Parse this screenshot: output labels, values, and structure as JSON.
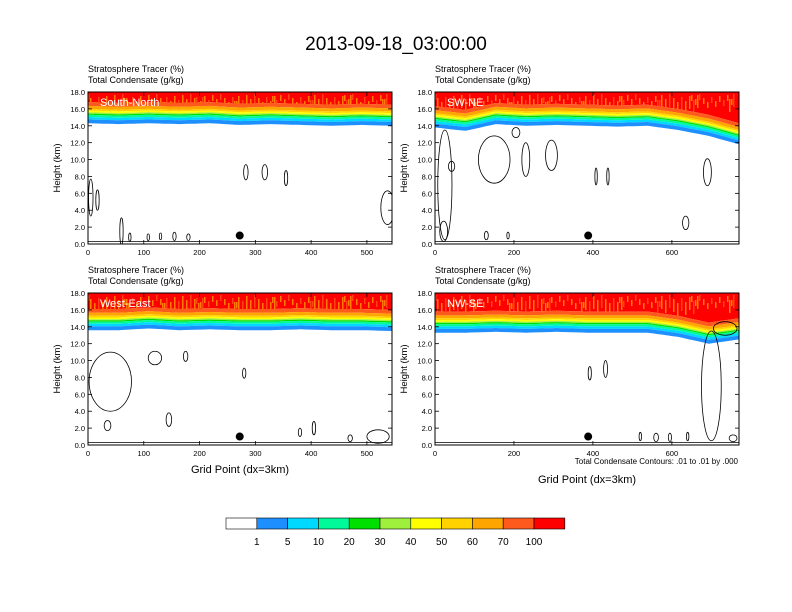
{
  "figure": {
    "title": "2013-09-18_03:00:00",
    "footnote": "Total Condensate Contours: .01 to .01 by .000"
  },
  "colors": {
    "bins": [
      "#ffffff",
      "#1e8fff",
      "#00d9ff",
      "#00fa9a",
      "#00e000",
      "#9ff03c",
      "#ffff00",
      "#ffd200",
      "#ffa500",
      "#ff5a1e",
      "#ff0000"
    ],
    "contour": "#000000"
  },
  "colorbar": {
    "labels": [
      "1",
      "5",
      "10",
      "20",
      "30",
      "40",
      "50",
      "60",
      "70",
      "100"
    ]
  },
  "chart_data": [
    {
      "type": "heatmap",
      "id": "south-north",
      "label": "South-North",
      "subtitle_line1": "Stratosphere Tracer   (%)",
      "subtitle_line2": "Total Condensate   (g/kg)",
      "ylabel": "Height (km)",
      "xlabel": "",
      "xlim": [
        0,
        545
      ],
      "ylim": [
        0,
        18
      ],
      "xticks": [
        0,
        100,
        200,
        300,
        400,
        500
      ],
      "yticks": [
        "0.0",
        "2.0",
        "4.0",
        "6.0",
        "8.0",
        "10.0",
        "12.0",
        "14.0",
        "16.0",
        "18.0"
      ],
      "tracer_bottom_km": [
        14.3,
        14.2,
        14.3,
        14.2,
        14.3,
        14.1,
        14.2,
        14.1,
        14.0,
        14.1,
        14.0
      ],
      "marker": {
        "x": 272,
        "y": 1.0
      },
      "contours": [
        {
          "x": 5,
          "y": 5.5,
          "rx": 4,
          "ry": 2.2
        },
        {
          "x": 17,
          "y": 5.2,
          "rx": 3,
          "ry": 1.2
        },
        {
          "x": 60,
          "y": 1.5,
          "rx": 3,
          "ry": 1.6
        },
        {
          "x": 75,
          "y": 0.8,
          "rx": 2,
          "ry": 0.5
        },
        {
          "x": 108,
          "y": 0.8,
          "rx": 2,
          "ry": 0.4
        },
        {
          "x": 130,
          "y": 0.9,
          "rx": 2,
          "ry": 0.4
        },
        {
          "x": 155,
          "y": 0.9,
          "rx": 3,
          "ry": 0.5
        },
        {
          "x": 180,
          "y": 0.8,
          "rx": 3,
          "ry": 0.4
        },
        {
          "x": 283,
          "y": 8.5,
          "rx": 4,
          "ry": 0.9
        },
        {
          "x": 317,
          "y": 8.5,
          "rx": 5,
          "ry": 0.9
        },
        {
          "x": 355,
          "y": 7.8,
          "rx": 3,
          "ry": 0.9
        },
        {
          "x": 537,
          "y": 4.3,
          "rx": 12,
          "ry": 2.0
        }
      ]
    },
    {
      "type": "heatmap",
      "id": "sw-ne",
      "label": "SW-NE",
      "subtitle_line1": "Stratosphere Tracer   (%)",
      "subtitle_line2": "Total Condensate   (g/kg)",
      "ylabel": "Height (km)",
      "xlabel": "",
      "xlim": [
        0,
        770
      ],
      "ylim": [
        0,
        18
      ],
      "xticks": [
        0,
        200,
        400,
        600
      ],
      "yticks": [
        "0.0",
        "2.0",
        "4.0",
        "6.0",
        "8.0",
        "10.0",
        "12.0",
        "14.0",
        "16.0",
        "18.0"
      ],
      "tracer_bottom_km": [
        13.8,
        13.4,
        14.2,
        14.0,
        14.1,
        14.0,
        13.9,
        14.0,
        13.5,
        12.8,
        11.8
      ],
      "marker": {
        "x": 388,
        "y": 1.0
      },
      "contours": [
        {
          "x": 25,
          "y": 7.0,
          "rx": 18,
          "ry": 6.5
        },
        {
          "x": 42,
          "y": 9.2,
          "rx": 8,
          "ry": 0.6
        },
        {
          "x": 150,
          "y": 10.0,
          "rx": 40,
          "ry": 2.8
        },
        {
          "x": 205,
          "y": 13.2,
          "rx": 10,
          "ry": 0.6
        },
        {
          "x": 230,
          "y": 10.0,
          "rx": 10,
          "ry": 2.0
        },
        {
          "x": 295,
          "y": 10.5,
          "rx": 15,
          "ry": 1.8
        },
        {
          "x": 408,
          "y": 8.0,
          "rx": 3,
          "ry": 1.0
        },
        {
          "x": 438,
          "y": 8.0,
          "rx": 3,
          "ry": 1.0
        },
        {
          "x": 690,
          "y": 8.5,
          "rx": 10,
          "ry": 1.6
        },
        {
          "x": 635,
          "y": 2.5,
          "rx": 8,
          "ry": 0.8
        },
        {
          "x": 22,
          "y": 1.5,
          "rx": 10,
          "ry": 1.2
        },
        {
          "x": 130,
          "y": 1.0,
          "rx": 5,
          "ry": 0.5
        },
        {
          "x": 185,
          "y": 1.0,
          "rx": 3,
          "ry": 0.4
        }
      ]
    },
    {
      "type": "heatmap",
      "id": "west-east",
      "label": "West-East",
      "subtitle_line1": "Stratosphere Tracer   (%)",
      "subtitle_line2": "Total Condensate   (g/kg)",
      "ylabel": "Height (km)",
      "xlabel": "Grid Point (dx=3km)",
      "xlim": [
        0,
        545
      ],
      "ylim": [
        0,
        18
      ],
      "xticks": [
        0,
        100,
        200,
        300,
        400,
        500
      ],
      "yticks": [
        "0.0",
        "2.0",
        "4.0",
        "6.0",
        "8.0",
        "10.0",
        "12.0",
        "14.0",
        "16.0",
        "18.0"
      ],
      "tracer_bottom_km": [
        13.6,
        13.6,
        13.8,
        13.6,
        13.7,
        13.6,
        13.6,
        13.7,
        13.6,
        13.6,
        13.5
      ],
      "marker": {
        "x": 272,
        "y": 1.0
      },
      "contours": [
        {
          "x": 40,
          "y": 7.5,
          "rx": 38,
          "ry": 3.5
        },
        {
          "x": 120,
          "y": 10.3,
          "rx": 12,
          "ry": 0.8
        },
        {
          "x": 175,
          "y": 10.5,
          "rx": 4,
          "ry": 0.6
        },
        {
          "x": 280,
          "y": 8.5,
          "rx": 3,
          "ry": 0.6
        },
        {
          "x": 35,
          "y": 2.3,
          "rx": 6,
          "ry": 0.6
        },
        {
          "x": 145,
          "y": 3.0,
          "rx": 5,
          "ry": 0.8
        },
        {
          "x": 380,
          "y": 1.5,
          "rx": 3,
          "ry": 0.5
        },
        {
          "x": 405,
          "y": 2.0,
          "rx": 3,
          "ry": 0.8
        },
        {
          "x": 470,
          "y": 0.8,
          "rx": 4,
          "ry": 0.4
        },
        {
          "x": 520,
          "y": 1.0,
          "rx": 20,
          "ry": 0.8
        }
      ]
    },
    {
      "type": "heatmap",
      "id": "nw-se",
      "label": "NW-SE",
      "subtitle_line1": "Stratosphere Tracer   (%)",
      "subtitle_line2": "Total Condensate   (g/kg)",
      "ylabel": "Height (km)",
      "xlabel": "Grid Point (dx=3km)",
      "xlim": [
        0,
        770
      ],
      "ylim": [
        0,
        18
      ],
      "xticks": [
        0,
        200,
        400,
        600
      ],
      "yticks": [
        "0.0",
        "2.0",
        "4.0",
        "6.0",
        "8.0",
        "10.0",
        "12.0",
        "14.0",
        "16.0",
        "18.0"
      ],
      "tracer_bottom_km": [
        13.3,
        13.3,
        13.4,
        13.3,
        13.4,
        13.3,
        13.3,
        13.3,
        12.8,
        12.0,
        12.5
      ],
      "marker": {
        "x": 388,
        "y": 1.0
      },
      "contours": [
        {
          "x": 392,
          "y": 8.5,
          "rx": 4,
          "ry": 0.8
        },
        {
          "x": 432,
          "y": 9.0,
          "rx": 5,
          "ry": 1.0
        },
        {
          "x": 700,
          "y": 7.0,
          "rx": 25,
          "ry": 6.5
        },
        {
          "x": 735,
          "y": 13.8,
          "rx": 30,
          "ry": 0.8
        },
        {
          "x": 520,
          "y": 1.0,
          "rx": 3,
          "ry": 0.5
        },
        {
          "x": 560,
          "y": 0.9,
          "rx": 6,
          "ry": 0.5
        },
        {
          "x": 595,
          "y": 0.9,
          "rx": 4,
          "ry": 0.5
        },
        {
          "x": 640,
          "y": 1.0,
          "rx": 3,
          "ry": 0.5
        },
        {
          "x": 755,
          "y": 0.8,
          "rx": 10,
          "ry": 0.4
        }
      ]
    }
  ]
}
